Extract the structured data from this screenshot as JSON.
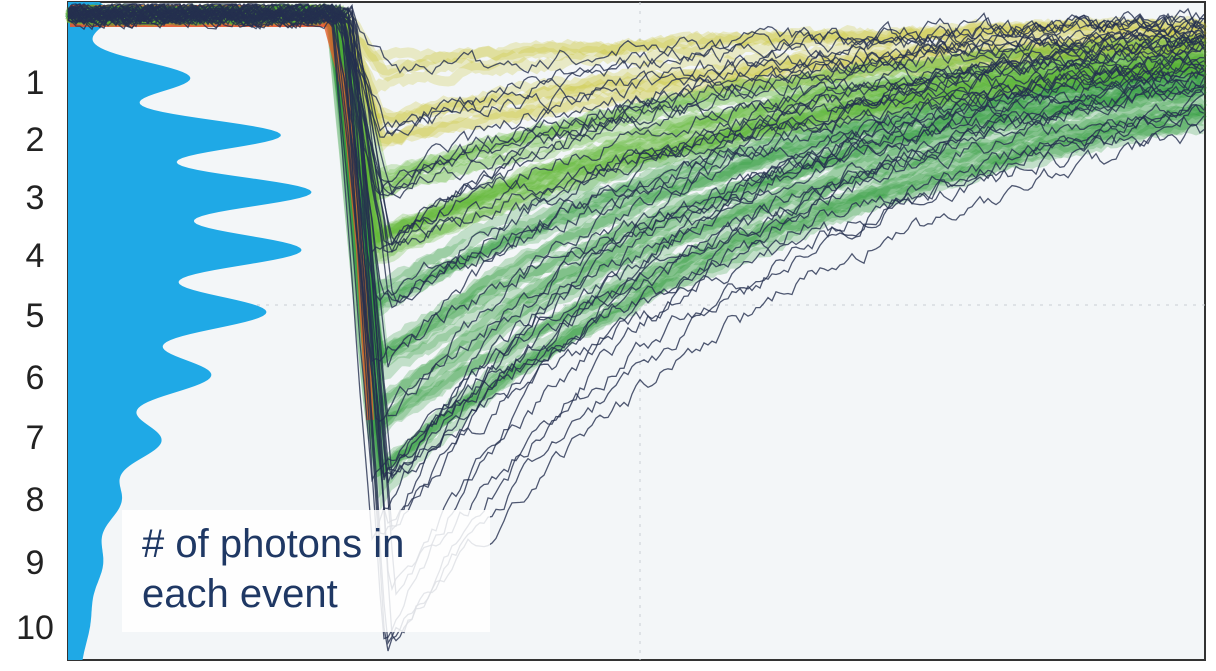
{
  "y_axis_labels": [
    "1",
    "2",
    "3",
    "4",
    "5",
    "6",
    "7",
    "8",
    "9",
    "10"
  ],
  "annotation": {
    "lines": [
      "# of photons in",
      "each event"
    ]
  }
}
